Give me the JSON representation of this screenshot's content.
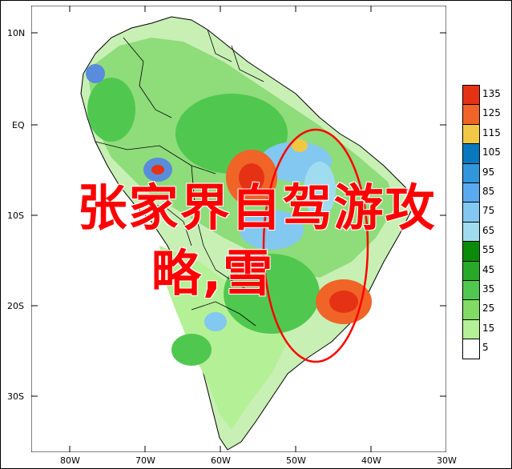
{
  "map": {
    "lat_labels": [
      "10N",
      "EQ",
      "10S",
      "20S",
      "30S"
    ],
    "lon_labels": [
      "80W",
      "70W",
      "60W",
      "50W",
      "40W",
      "30W"
    ],
    "colors": {
      "land_green_light": "#c8f0b4",
      "land_green": "#8fdc7a",
      "land_green_dark": "#3cb43c",
      "blue_light": "#a0c8f0",
      "blue": "#5a8cdc",
      "orange": "#f08c28",
      "red": "#e63214",
      "coast": "#000000",
      "ring": "#ff0000"
    }
  },
  "legend": {
    "levels": [
      {
        "label": "135",
        "color": "#e63214"
      },
      {
        "label": "125",
        "color": "#f06428"
      },
      {
        "label": "115",
        "color": "#f0c846"
      },
      {
        "label": "105",
        "color": "#0a78be"
      },
      {
        "label": "95",
        "color": "#3296dc"
      },
      {
        "label": "85",
        "color": "#5aaaf0"
      },
      {
        "label": "75",
        "color": "#82c8f0"
      },
      {
        "label": "65",
        "color": "#a0dcf0"
      },
      {
        "label": "55",
        "color": "#0a8c0a"
      },
      {
        "label": "45",
        "color": "#28aa28"
      },
      {
        "label": "35",
        "color": "#50c850"
      },
      {
        "label": "25",
        "color": "#82dc64"
      },
      {
        "label": "15",
        "color": "#b4f096"
      },
      {
        "label": "5",
        "color": "#ffffff"
      }
    ]
  },
  "overlay": {
    "line1": "张家界自驾游攻",
    "line2": "略,雪"
  }
}
